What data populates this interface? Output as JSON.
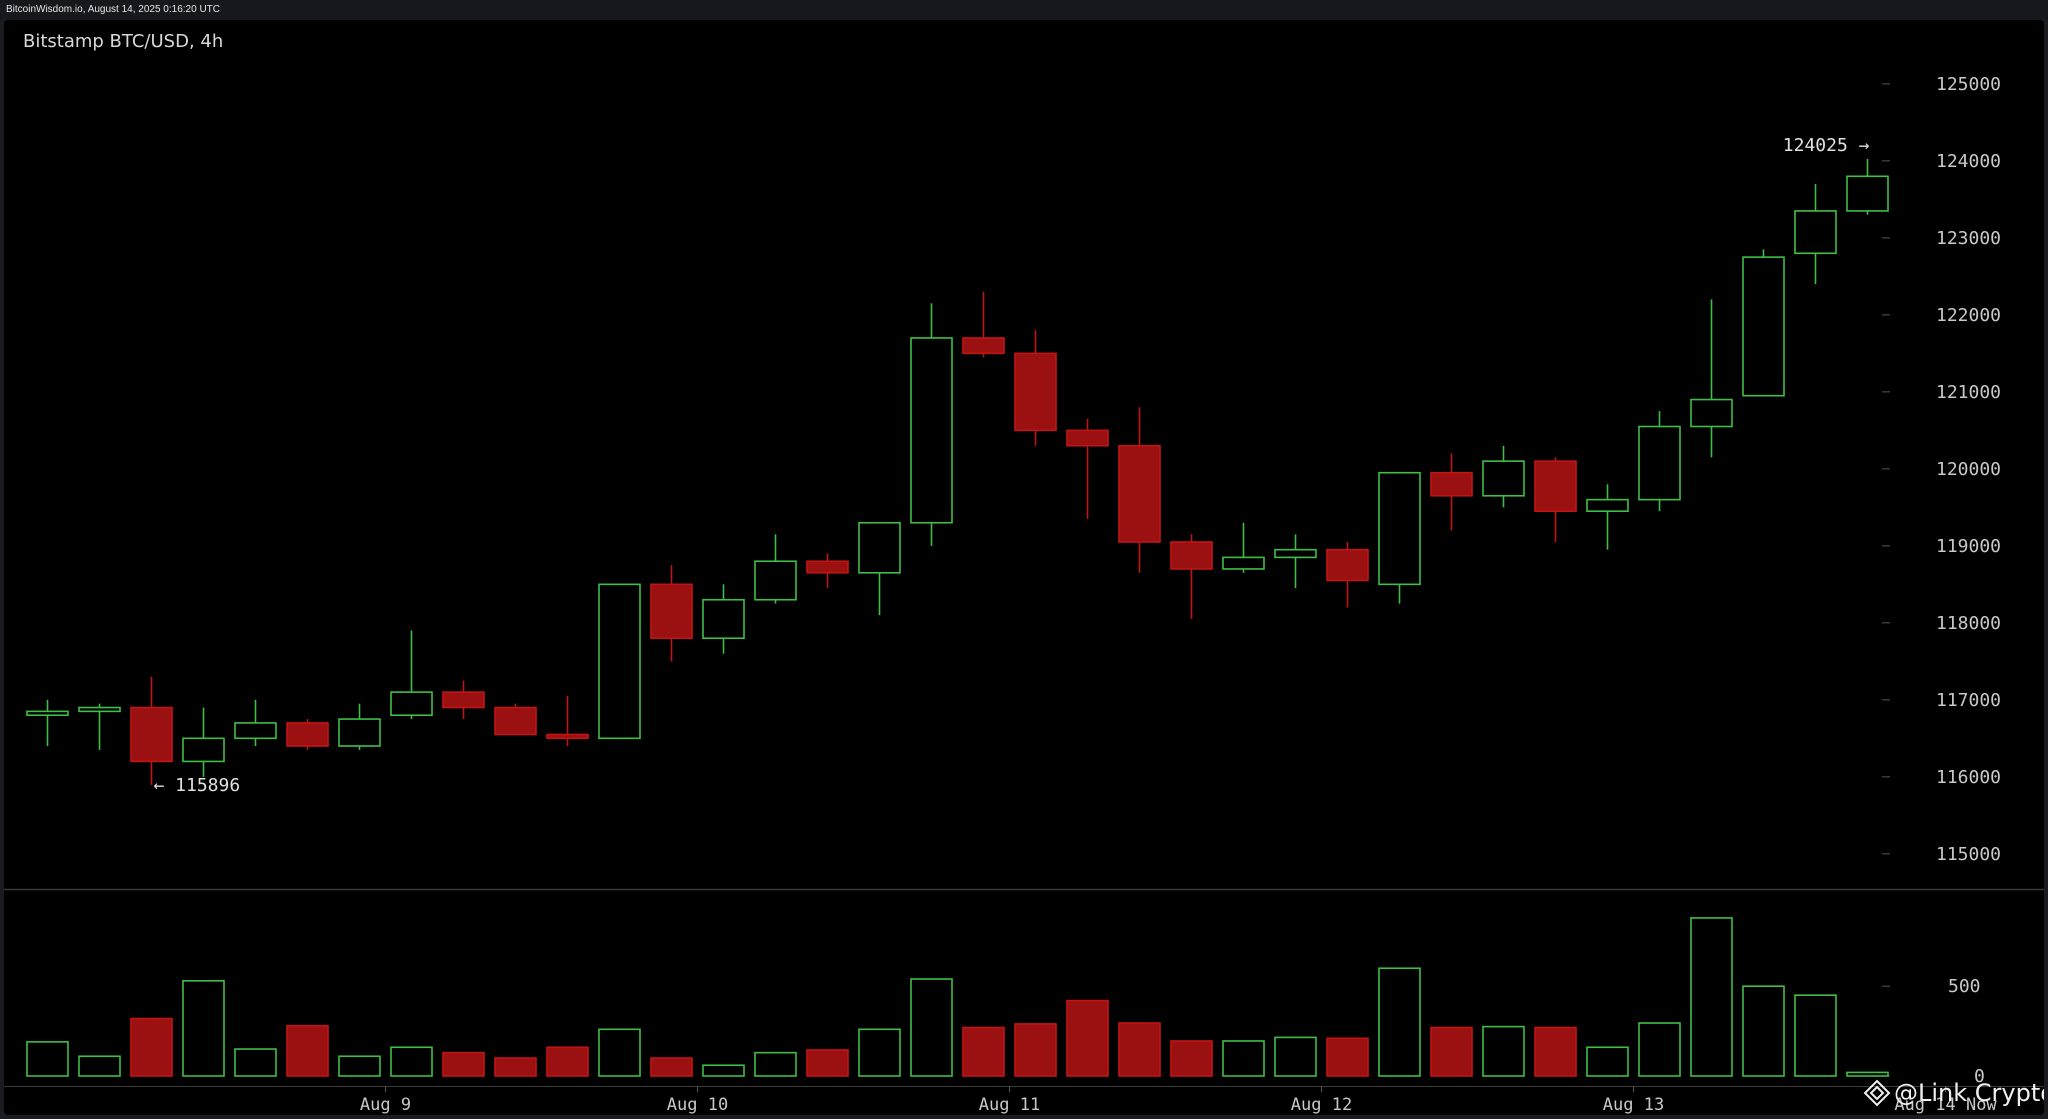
{
  "source_line": "BitcoinWisdom.io, August 14, 2025 0:16:20 UTC",
  "watermark": "@Link Crypto",
  "colors": {
    "up": "#3fbf45",
    "down": "#c01515",
    "down_fill": "#9b1010",
    "axis_text": "#c8c8c8",
    "divider": "#3a3a3a"
  },
  "chart_data": {
    "type": "candlestick",
    "title": "Bitstamp BTC/USD, 4h",
    "ylim": [
      114400,
      125700
    ],
    "yticks": [
      115000,
      116000,
      117000,
      118000,
      119000,
      120000,
      121000,
      122000,
      123000,
      124000,
      125000
    ],
    "xtick_labels": [
      "Aug 9",
      "Aug 10",
      "Aug 11",
      "Aug 12",
      "Aug 13",
      "Aug 14 Now"
    ],
    "xtick_positions": [
      6.5,
      12.5,
      18.5,
      24.5,
      30.5,
      36.5
    ],
    "volume_ylim": [
      0,
      980
    ],
    "volume_yticks": [
      0,
      500
    ],
    "annotations": [
      {
        "text": "← 115896",
        "value": 115896,
        "index": 2
      },
      {
        "text": "124025 →",
        "value": 124025,
        "index": 35
      }
    ],
    "candles": [
      {
        "o": 116800,
        "h": 117000,
        "l": 116400,
        "c": 116850
      },
      {
        "o": 116850,
        "h": 116950,
        "l": 116350,
        "c": 116900
      },
      {
        "o": 116900,
        "h": 117300,
        "l": 115896,
        "c": 116200
      },
      {
        "o": 116200,
        "h": 116900,
        "l": 116000,
        "c": 116500
      },
      {
        "o": 116500,
        "h": 117000,
        "l": 116400,
        "c": 116700
      },
      {
        "o": 116700,
        "h": 116750,
        "l": 116350,
        "c": 116400
      },
      {
        "o": 116400,
        "h": 116950,
        "l": 116350,
        "c": 116750
      },
      {
        "o": 116800,
        "h": 117900,
        "l": 116750,
        "c": 117100
      },
      {
        "o": 117100,
        "h": 117250,
        "l": 116750,
        "c": 116900
      },
      {
        "o": 116900,
        "h": 116950,
        "l": 116550,
        "c": 116550
      },
      {
        "o": 116550,
        "h": 117050,
        "l": 116400,
        "c": 116500
      },
      {
        "o": 116500,
        "h": 118500,
        "l": 116500,
        "c": 118500
      },
      {
        "o": 118500,
        "h": 118750,
        "l": 117500,
        "c": 117800
      },
      {
        "o": 117800,
        "h": 118500,
        "l": 117600,
        "c": 118300
      },
      {
        "o": 118300,
        "h": 119150,
        "l": 118250,
        "c": 118800
      },
      {
        "o": 118800,
        "h": 118900,
        "l": 118450,
        "c": 118650
      },
      {
        "o": 118650,
        "h": 119300,
        "l": 118100,
        "c": 119300
      },
      {
        "o": 119300,
        "h": 122150,
        "l": 119000,
        "c": 121700
      },
      {
        "o": 121700,
        "h": 122300,
        "l": 121450,
        "c": 121500
      },
      {
        "o": 121500,
        "h": 121800,
        "l": 120300,
        "c": 120500
      },
      {
        "o": 120500,
        "h": 120650,
        "l": 119350,
        "c": 120300
      },
      {
        "o": 120300,
        "h": 120800,
        "l": 118650,
        "c": 119050
      },
      {
        "o": 119050,
        "h": 119150,
        "l": 118050,
        "c": 118700
      },
      {
        "o": 118700,
        "h": 119300,
        "l": 118650,
        "c": 118850
      },
      {
        "o": 118850,
        "h": 119150,
        "l": 118450,
        "c": 118950
      },
      {
        "o": 118950,
        "h": 119050,
        "l": 118200,
        "c": 118550
      },
      {
        "o": 118500,
        "h": 119950,
        "l": 118250,
        "c": 119950
      },
      {
        "o": 119950,
        "h": 120200,
        "l": 119200,
        "c": 119650
      },
      {
        "o": 119650,
        "h": 120300,
        "l": 119500,
        "c": 120100
      },
      {
        "o": 120100,
        "h": 120150,
        "l": 119050,
        "c": 119450
      },
      {
        "o": 119450,
        "h": 119800,
        "l": 118950,
        "c": 119600
      },
      {
        "o": 119600,
        "h": 120750,
        "l": 119450,
        "c": 120550
      },
      {
        "o": 120550,
        "h": 122200,
        "l": 120150,
        "c": 120900
      },
      {
        "o": 120950,
        "h": 122850,
        "l": 120950,
        "c": 122750
      },
      {
        "o": 122800,
        "h": 123700,
        "l": 122400,
        "c": 123350
      },
      {
        "o": 123350,
        "h": 124025,
        "l": 123300,
        "c": 123800
      }
    ],
    "volumes": [
      190,
      110,
      320,
      530,
      150,
      280,
      110,
      160,
      130,
      100,
      160,
      260,
      100,
      60,
      130,
      145,
      260,
      540,
      270,
      290,
      420,
      295,
      195,
      195,
      215,
      210,
      600,
      270,
      275,
      270,
      160,
      295,
      880,
      500,
      450,
      20
    ]
  }
}
